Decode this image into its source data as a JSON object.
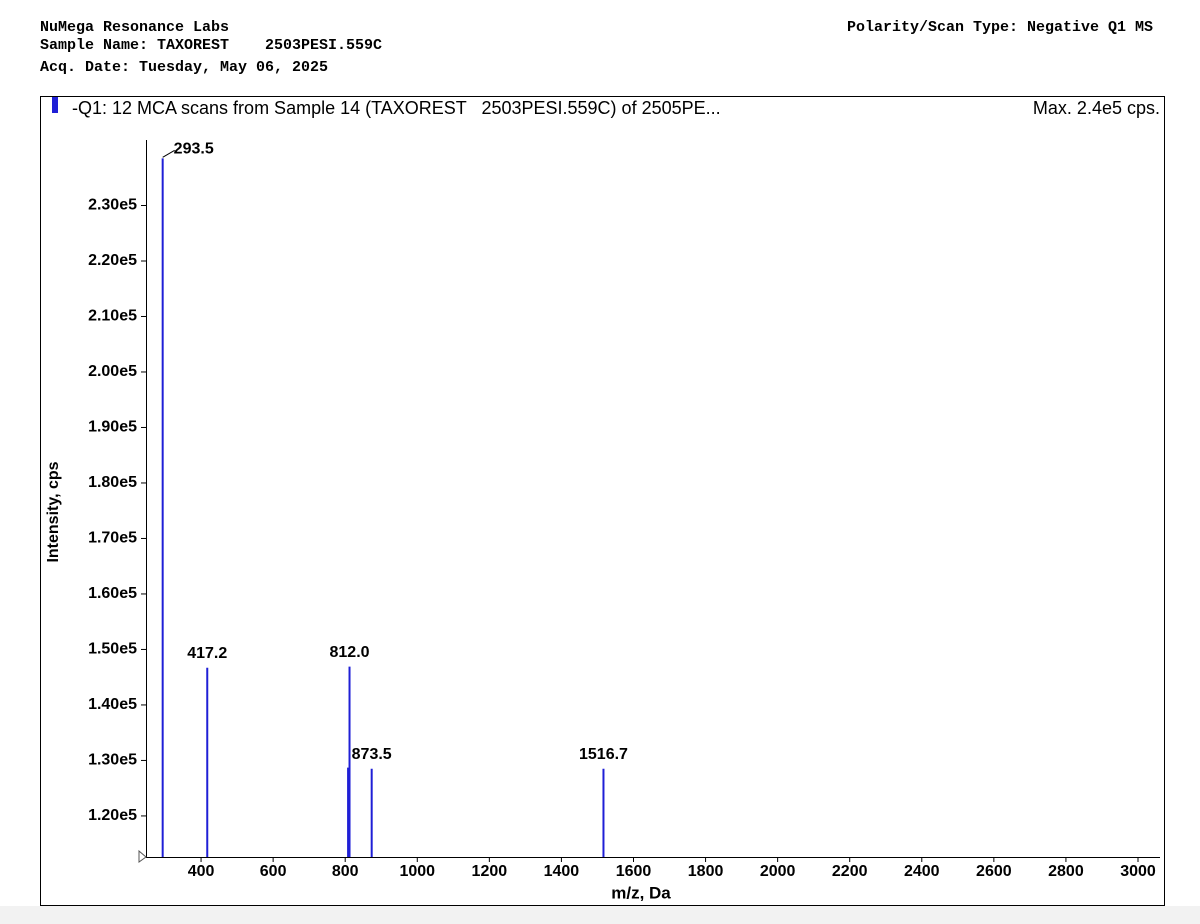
{
  "chart_data": {
    "type": "spectrum",
    "header_left": [
      "NuMega Resonance Labs",
      "Sample Name: TAXOREST    2503PESI.559C",
      "Acq. Date: Tuesday, May 06, 2025"
    ],
    "header_right": "Polarity/Scan Type: Negative Q1 MS",
    "title": "-Q1: 12 MCA scans from Sample 14 (TAXOREST   2503PESI.559C) of 2505PE...",
    "max_label": "Max. 2.4e5 cps.",
    "x_label": "m/z, Da",
    "y_label": "Intensity, cps",
    "color": "#1f1fd6",
    "x": [
      293.5,
      417.2,
      808,
      812.0,
      873.5,
      1516.7
    ],
    "values": [
      238500,
      146700,
      128700,
      146900,
      128500,
      128500
    ],
    "peak_labels": [
      "293.5",
      "417.2",
      null,
      "812.0",
      "873.5",
      "1516.7"
    ],
    "xlim": [
      250,
      3000
    ],
    "ylim": [
      112600,
      240000
    ],
    "xticks": [
      400,
      600,
      800,
      1000,
      1200,
      1400,
      1600,
      1800,
      2000,
      2200,
      2400,
      2600,
      2800,
      3000
    ],
    "yticks": [
      {
        "value": 120000,
        "label": "1.20e5"
      },
      {
        "value": 130000,
        "label": "1.30e5"
      },
      {
        "value": 140000,
        "label": "1.40e5"
      },
      {
        "value": 150000,
        "label": "1.50e5"
      },
      {
        "value": 160000,
        "label": "1.60e5"
      },
      {
        "value": 170000,
        "label": "1.70e5"
      },
      {
        "value": 180000,
        "label": "1.80e5"
      },
      {
        "value": 190000,
        "label": "1.90e5"
      },
      {
        "value": 200000,
        "label": "2.00e5"
      },
      {
        "value": 210000,
        "label": "2.10e5"
      },
      {
        "value": 220000,
        "label": "2.20e5"
      },
      {
        "value": 230000,
        "label": "2.30e5"
      }
    ]
  }
}
